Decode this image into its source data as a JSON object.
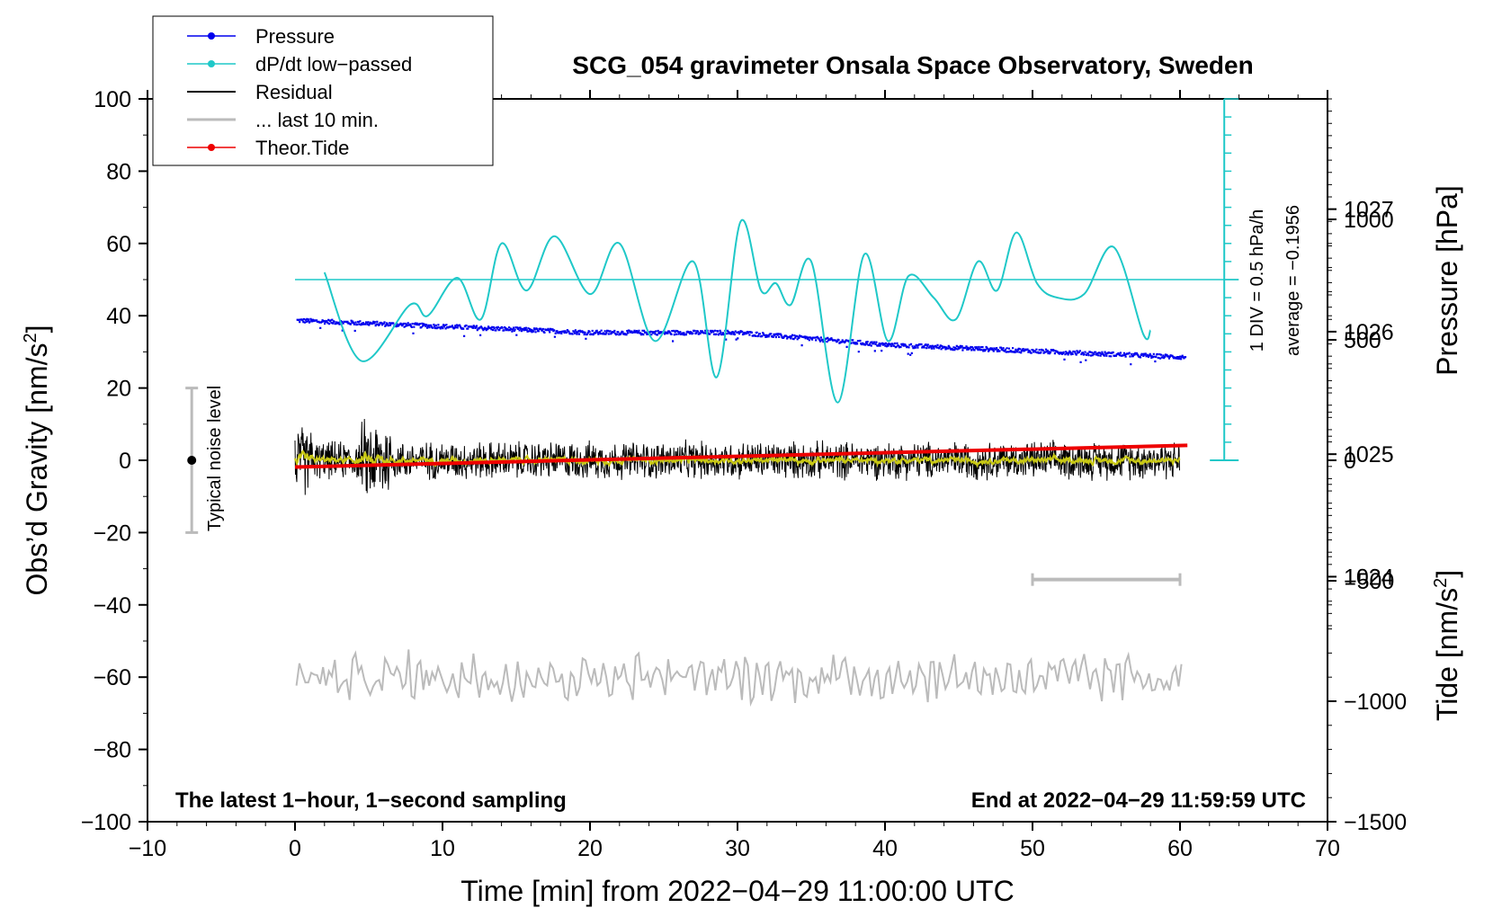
{
  "chart_data": {
    "type": "line",
    "title": "SCG_054 gravimeter Onsala Space Observatory, Sweden",
    "xlabel": "Time [min] from 2022−04−29 11:00:00 UTC",
    "ylabel_left": "Obs’d Gravity [nm/s",
    "ylabel_left_sup": "2",
    "ylabel_left_end": "]",
    "ylabel_right_pressure": "Pressure [hPa]",
    "ylabel_right_tide": "Tide [nm/s",
    "ylabel_right_tide_sup": "2",
    "ylabel_right_tide_end": "]",
    "xlim": [
      -10,
      70
    ],
    "ylim": [
      -100,
      100
    ],
    "pressure_lim": [
      1022.0,
      1027.9
    ],
    "tide_lim": [
      -1500,
      1500
    ],
    "x_ticks": [
      "−10",
      "0",
      "10",
      "20",
      "30",
      "40",
      "50",
      "60",
      "70"
    ],
    "y_ticks": [
      "−100",
      "−80",
      "−60",
      "−40",
      "−20",
      "0",
      "20",
      "40",
      "60",
      "80",
      "100"
    ],
    "pressure_ticks": [
      "1024",
      "1025",
      "1026",
      "1027"
    ],
    "tide_ticks": [
      "−1500",
      "−1000",
      "−500",
      "0",
      "500",
      "1000"
    ],
    "legend": [
      {
        "label": "Pressure",
        "color": "#0000ee",
        "marker": true
      },
      {
        "label": "dP/dt low−passed",
        "color": "#1fc8c8",
        "marker": true
      },
      {
        "label": "Residual",
        "color": "#000000",
        "marker": false
      },
      {
        "label": "... last 10 min.",
        "color": "#bbbbbb",
        "marker": false
      },
      {
        "label": "Theor.Tide",
        "color": "#ee0000",
        "marker": true
      }
    ],
    "series": [
      {
        "name": "Pressure",
        "unit": "hPa",
        "x": [
          0,
          10,
          20,
          30,
          40,
          50,
          60
        ],
        "values": [
          1026.1,
          1026.05,
          1026.0,
          1026.0,
          1025.9,
          1025.85,
          1025.8
        ]
      },
      {
        "name": "dP/dt low-passed",
        "unit": "gravity axis",
        "x": [
          2,
          4.5,
          7.8,
          9,
          11,
          12.6,
          14,
          15.7,
          17.6,
          20,
          22,
          24.4,
          27,
          28.6,
          30.2,
          31.6,
          32.6,
          33.6,
          35,
          36.8,
          38.6,
          40.2,
          41.6,
          43.3,
          44.8,
          46.3,
          47.6,
          48.9,
          50.3,
          51.7,
          53.5,
          55.5,
          57.5,
          58.0
        ],
        "values": [
          52,
          27.5,
          43,
          40,
          50.5,
          39,
          60,
          47,
          62,
          46,
          60,
          33,
          55,
          23,
          66,
          47,
          49,
          43,
          55,
          16,
          57,
          33,
          51,
          45,
          39,
          55,
          47,
          63,
          49,
          45,
          46,
          59,
          35,
          36
        ]
      },
      {
        "name": "Residual",
        "unit": "nm/s2",
        "x_range": [
          0,
          60
        ],
        "amplitude": 6
      },
      {
        "name": "... last 10 min.",
        "unit": "nm/s2",
        "x_range": [
          50,
          60
        ],
        "offset": -60
      },
      {
        "name": "Theor.Tide",
        "unit": "nm/s2",
        "x": [
          0,
          60.5
        ],
        "values": [
          -28,
          62
        ]
      }
    ],
    "dpdt_zero_line": 50,
    "typical_noise": {
      "x": -7,
      "center": 0,
      "low": -20,
      "high": 20,
      "label": "Typical noise level"
    },
    "scale_label_1": "1 DIV = 0.5 hPa/h",
    "scale_label_2": "average = −0.1956",
    "note_left": "The latest 1−hour, 1−second sampling",
    "note_right": "End at 2022−04−29 11:59:59 UTC",
    "colors": {
      "pressure": "#0000ee",
      "dpdt": "#1fc8c8",
      "residual": "#000000",
      "residual_smooth": "#c8c814",
      "last10": "#bbbbbb",
      "tide": "#ee0000",
      "noise_bar": "#bbbbbb"
    }
  }
}
